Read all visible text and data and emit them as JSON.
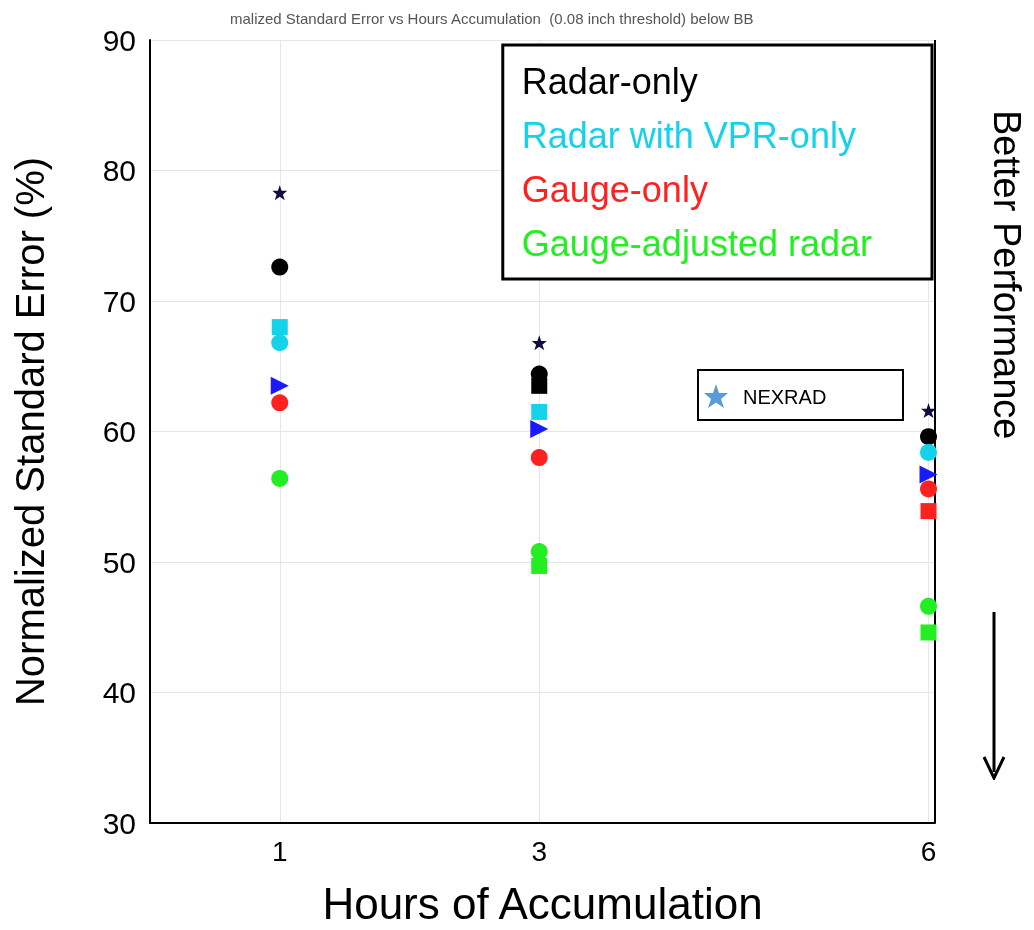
{
  "chart_data": {
    "type": "scatter",
    "title": "malized Standard Error vs Hours Accumulation  (0.08 inch threshold) below BB",
    "xlabel": "Hours of Accumulation",
    "ylabel": "Normalized Standard Error (%)",
    "xlim": [
      0,
      6.05
    ],
    "xticks": [
      1,
      3,
      6
    ],
    "ylim": [
      30,
      90
    ],
    "yticks": [
      30,
      40,
      50,
      60,
      70,
      80,
      90
    ],
    "grid": true,
    "legend": "top right",
    "annotations": [
      "Better Performance",
      "NEXRAD"
    ],
    "series": [
      {
        "name": "Radar-only",
        "color": "#000000",
        "marker": "circle",
        "x": [
          1,
          3,
          6
        ],
        "values": [
          72.6,
          64.4,
          59.6
        ]
      },
      {
        "color": "#000000",
        "marker": "square",
        "x": [
          3
        ],
        "values": [
          63.5
        ]
      },
      {
        "color": "#0d0d40",
        "marker": "star",
        "x": [
          1,
          3,
          6
        ],
        "values": [
          78.3,
          66.8,
          61.6
        ]
      },
      {
        "name": "Radar with VPR-only",
        "color": "#14d2ea",
        "marker": "circle",
        "x": [
          1,
          6
        ],
        "values": [
          66.8,
          58.4
        ]
      },
      {
        "color": "#14d2ea",
        "marker": "square",
        "x": [
          1,
          3
        ],
        "values": [
          68.0,
          61.5
        ]
      },
      {
        "color": "#1a1aff",
        "marker": "triangle",
        "x": [
          1,
          3,
          6
        ],
        "values": [
          63.5,
          60.2,
          56.7
        ]
      },
      {
        "name": "Gauge-only",
        "color": "#ff2020",
        "marker": "circle",
        "x": [
          1,
          3,
          6
        ],
        "values": [
          62.2,
          58.0,
          55.6
        ]
      },
      {
        "color": "#ff2020",
        "marker": "square",
        "x": [
          6
        ],
        "values": [
          53.9
        ]
      },
      {
        "name": "Gauge-adjusted radar",
        "color": "#22ee22",
        "marker": "circle",
        "x": [
          1,
          3,
          6
        ],
        "values": [
          56.4,
          50.8,
          46.6
        ]
      },
      {
        "color": "#22ee22",
        "marker": "square",
        "x": [
          3,
          6
        ],
        "values": [
          49.7,
          44.6
        ]
      }
    ]
  }
}
